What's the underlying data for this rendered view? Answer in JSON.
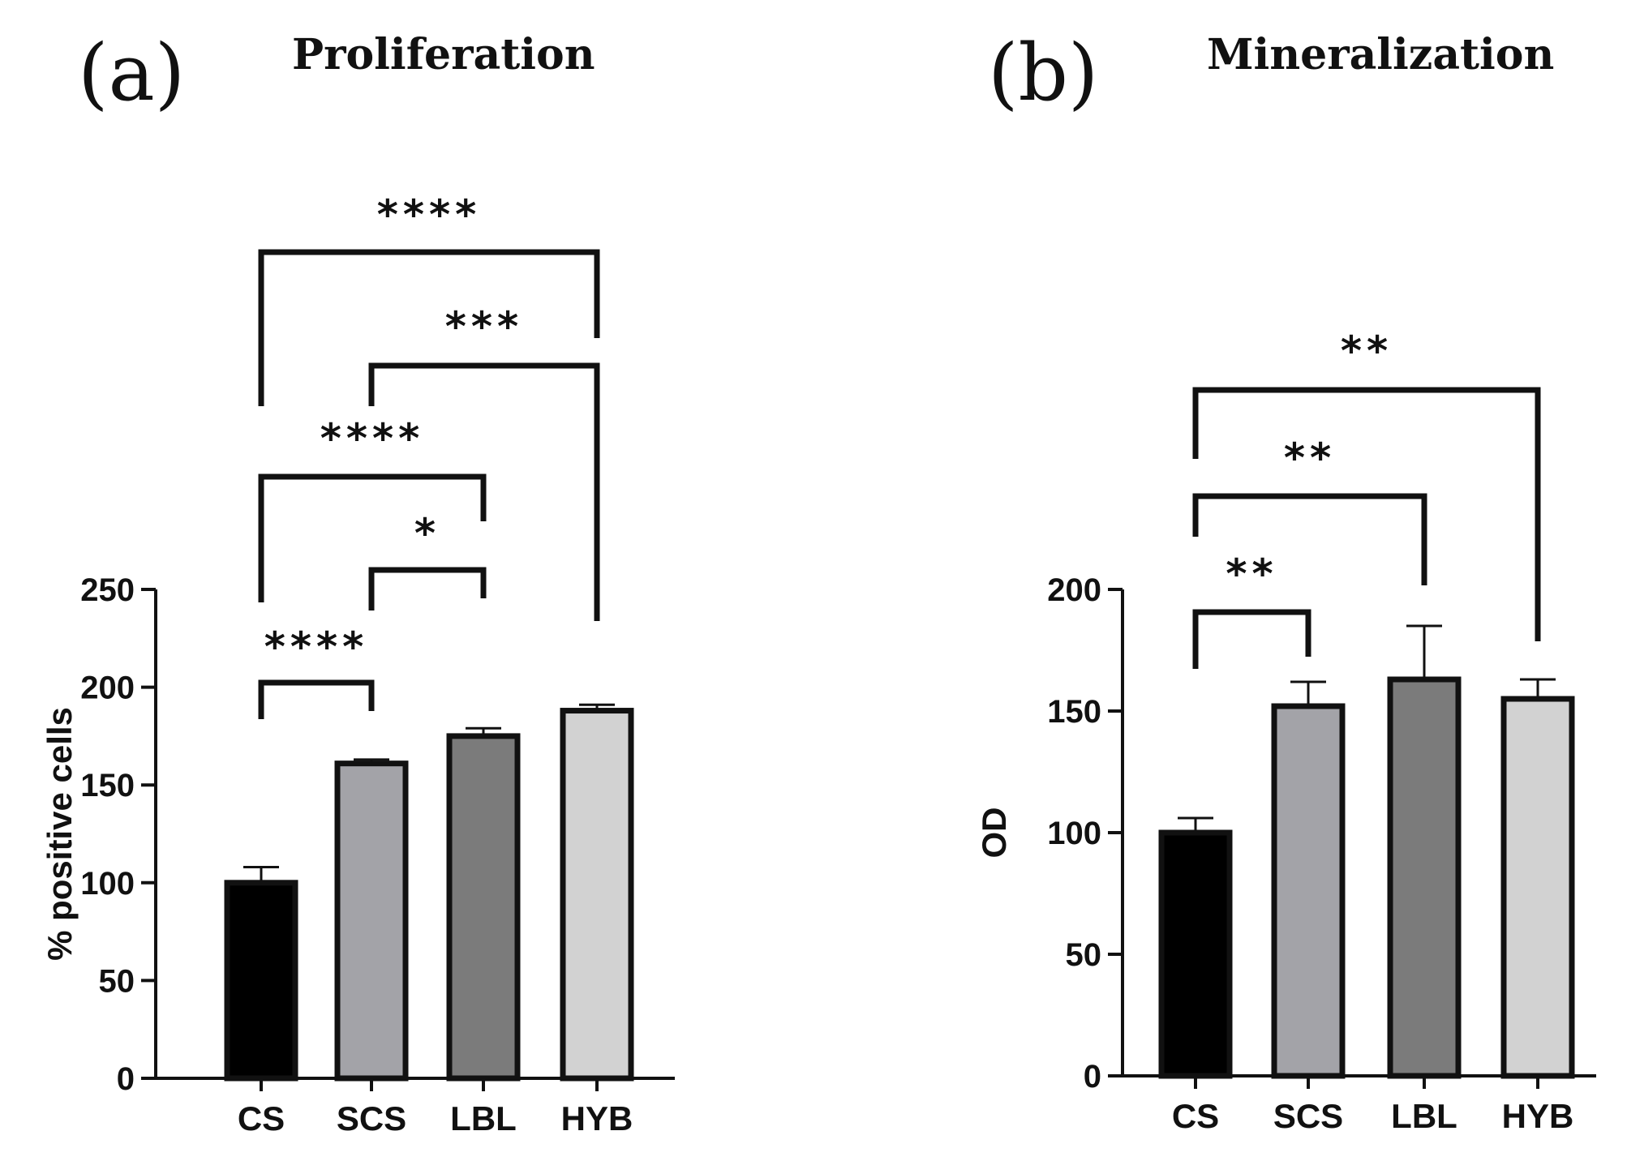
{
  "chart_data": [
    {
      "type": "bar",
      "panel_label": "(a)",
      "title": "Proliferation",
      "ylabel": "% positive cells",
      "xlabel": "",
      "categories": [
        "CS",
        "SCS",
        "LBL",
        "HYB"
      ],
      "values": [
        100,
        161,
        175,
        188
      ],
      "errors": [
        8,
        2,
        4,
        3
      ],
      "ylim": [
        0,
        250
      ],
      "yticks": [
        0,
        50,
        100,
        150,
        200,
        250
      ],
      "ytick_labels": [
        "0",
        "50",
        "100",
        "150",
        "200",
        "250"
      ],
      "bar_colors": [
        "#000000",
        "#a3a3a8",
        "#7b7b7b",
        "#d2d2d2"
      ],
      "grid": false,
      "significance": [
        {
          "from": 0,
          "to": 1,
          "label": "****"
        },
        {
          "from": 1,
          "to": 2,
          "label": "*"
        },
        {
          "from": 0,
          "to": 2,
          "label": "****"
        },
        {
          "from": 1,
          "to": 3,
          "label": "***"
        },
        {
          "from": 0,
          "to": 3,
          "label": "****"
        }
      ]
    },
    {
      "type": "bar",
      "panel_label": "(b)",
      "title": "Mineralization",
      "ylabel": "OD",
      "xlabel": "",
      "categories": [
        "CS",
        "SCS",
        "LBL",
        "HYB"
      ],
      "values": [
        100,
        152,
        163,
        155
      ],
      "errors": [
        6,
        10,
        22,
        8
      ],
      "ylim": [
        0,
        200
      ],
      "yticks": [
        0,
        50,
        100,
        150,
        200
      ],
      "ytick_labels": [
        "0",
        "50",
        "100",
        "150",
        "200"
      ],
      "bar_colors": [
        "#000000",
        "#a3a3a8",
        "#7b7b7b",
        "#d2d2d2"
      ],
      "grid": false,
      "significance": [
        {
          "from": 0,
          "to": 1,
          "label": "**"
        },
        {
          "from": 0,
          "to": 2,
          "label": "**"
        },
        {
          "from": 0,
          "to": 3,
          "label": "**"
        }
      ]
    }
  ]
}
